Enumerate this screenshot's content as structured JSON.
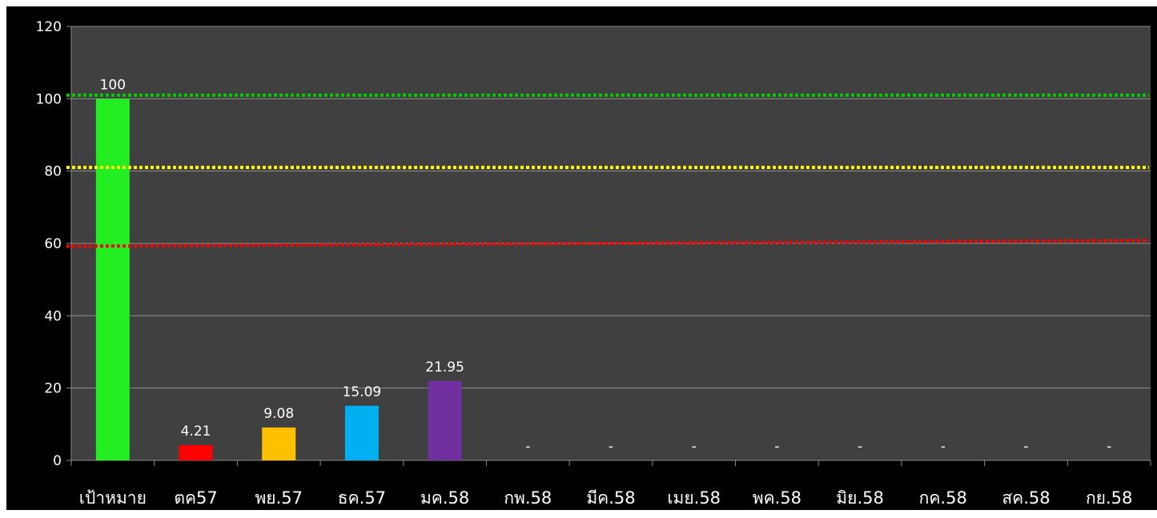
{
  "chart_data": {
    "type": "bar",
    "categories": [
      "เป้าหมาย",
      "ตค57",
      "พย.57",
      "ธค.57",
      "มค.58",
      "กพ.58",
      "มีค.58",
      "เมย.58",
      "พค.58",
      "มิย.58",
      "กค.58",
      "สค.58",
      "กย.58"
    ],
    "values": [
      100,
      4.21,
      9.08,
      15.09,
      21.95,
      null,
      null,
      null,
      null,
      null,
      null,
      null,
      null
    ],
    "data_labels": [
      "100",
      "4.21",
      "9.08",
      "15.09",
      "21.95",
      "-",
      "-",
      "-",
      "-",
      "-",
      "-",
      "-",
      "-"
    ],
    "bar_colors": [
      "#22ee22",
      "#ff0000",
      "#ffc000",
      "#00b0f0",
      "#7030a0",
      "#7030a0",
      "#7030a0",
      "#7030a0",
      "#7030a0",
      "#7030a0",
      "#7030a0",
      "#7030a0",
      "#7030a0"
    ],
    "ylim": [
      0,
      120
    ],
    "yticks": [
      0,
      20,
      40,
      60,
      80,
      100,
      120
    ],
    "grid": true,
    "reference_lines": [
      {
        "color": "#00cc00",
        "y_start": 101,
        "y_end": 101
      },
      {
        "color": "#ffff00",
        "y_start": 81,
        "y_end": 81
      },
      {
        "color": "#ff0000",
        "y_start": 59.2,
        "y_end": 60.8
      }
    ],
    "title": "",
    "xlabel": "",
    "ylabel": ""
  },
  "colors": {
    "frame_background": "#000000",
    "plot_background": "#404040",
    "gridline": "#8c8c8c",
    "text": "#ffffff"
  }
}
